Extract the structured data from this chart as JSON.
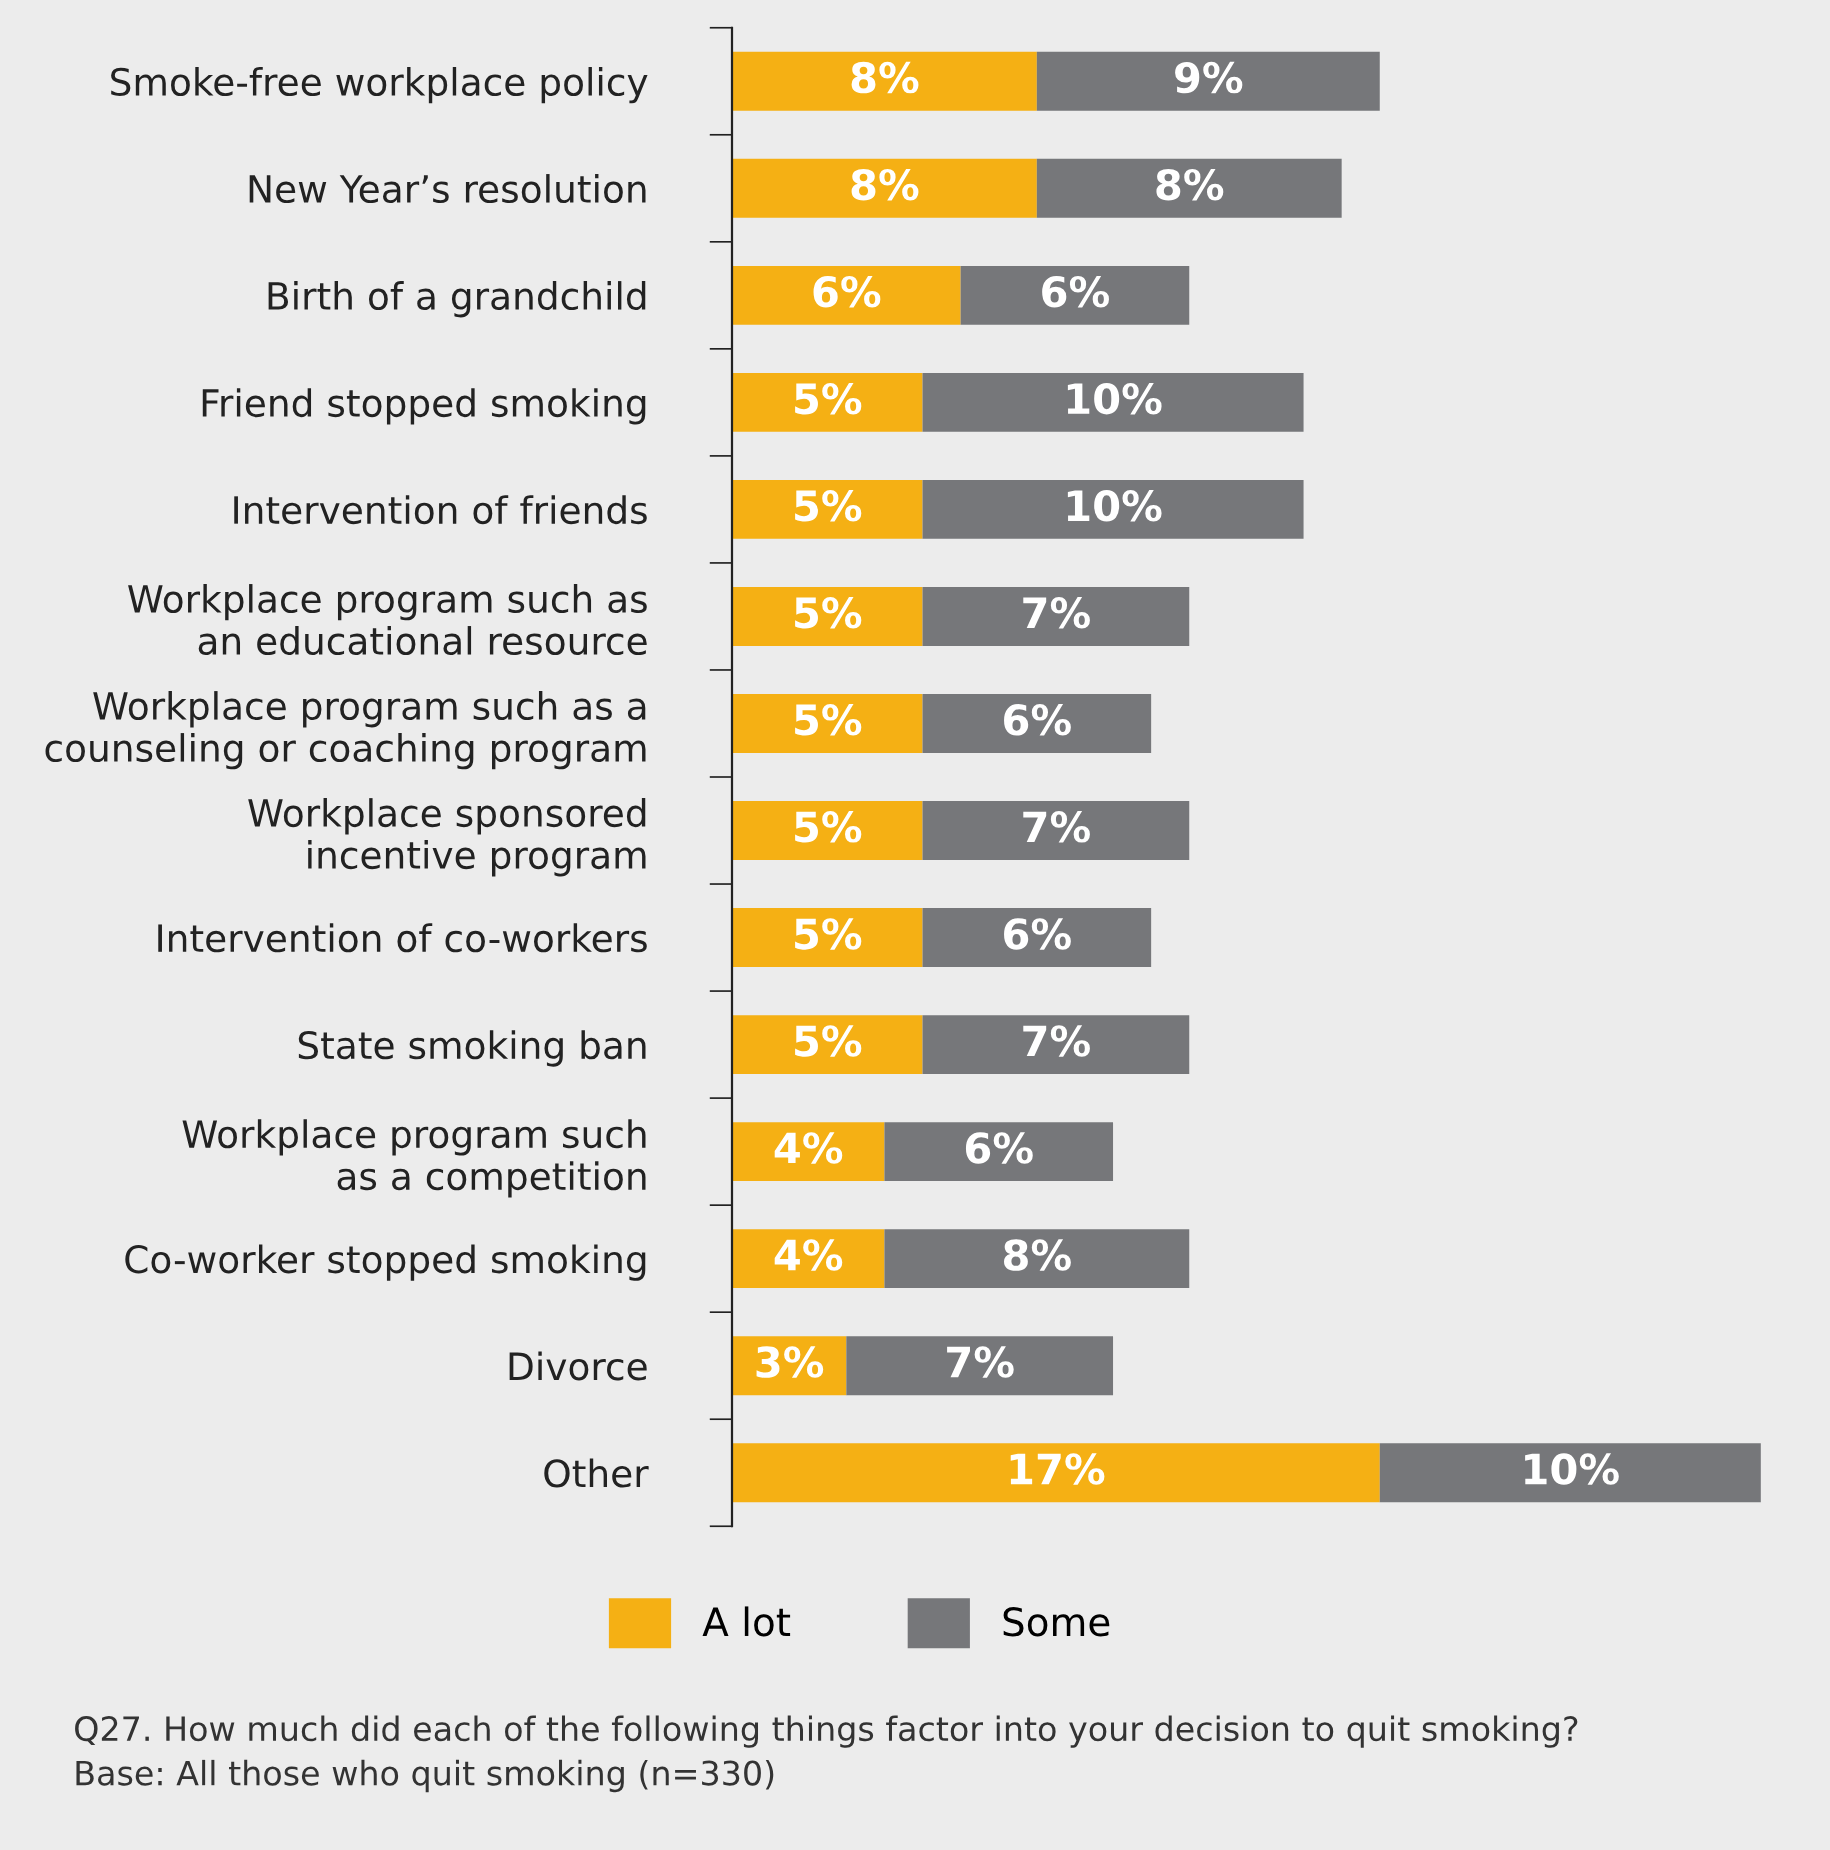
{
  "chart_data": {
    "type": "bar",
    "orientation": "horizontal",
    "stacked": true,
    "legend": "bottom",
    "grid": false,
    "tick_labels": "y",
    "categories": [
      "Smoke-free workplace policy",
      "New Year’s resolution",
      "Birth of a grandchild",
      "Friend stopped smoking",
      "Intervention of friends",
      "Workplace program such as\nan educational resource",
      "Workplace program such as a\ncounseling or coaching program",
      "Workplace sponsored\nincentive program",
      "Intervention of co-workers",
      "State smoking ban",
      "Workplace program such\nas a competition",
      "Co-worker stopped smoking",
      "Divorce",
      "Other"
    ],
    "series": [
      {
        "name": "A lot",
        "color": "#f5b014",
        "values": [
          8,
          8,
          6,
          5,
          5,
          5,
          5,
          5,
          5,
          5,
          4,
          4,
          3,
          17
        ],
        "value_labels": [
          "8%",
          "8%",
          "6%",
          "5%",
          "5%",
          "5%",
          "5%",
          "5%",
          "5%",
          "5%",
          "4%",
          "4%",
          "3%",
          "17%"
        ]
      },
      {
        "name": "Some",
        "color": "#76777a",
        "values": [
          9,
          8,
          6,
          10,
          10,
          7,
          6,
          7,
          6,
          7,
          6,
          8,
          7,
          10
        ],
        "value_labels": [
          "9%",
          "8%",
          "6%",
          "10%",
          "10%",
          "7%",
          "6%",
          "7%",
          "6%",
          "7%",
          "6%",
          "8%",
          "7%",
          "10%"
        ]
      }
    ],
    "annotations": [
      "Q27. How much did each of the following things factor into your decision to quit smoking?",
      "Base: All those who quit smoking (n=330)"
    ]
  }
}
